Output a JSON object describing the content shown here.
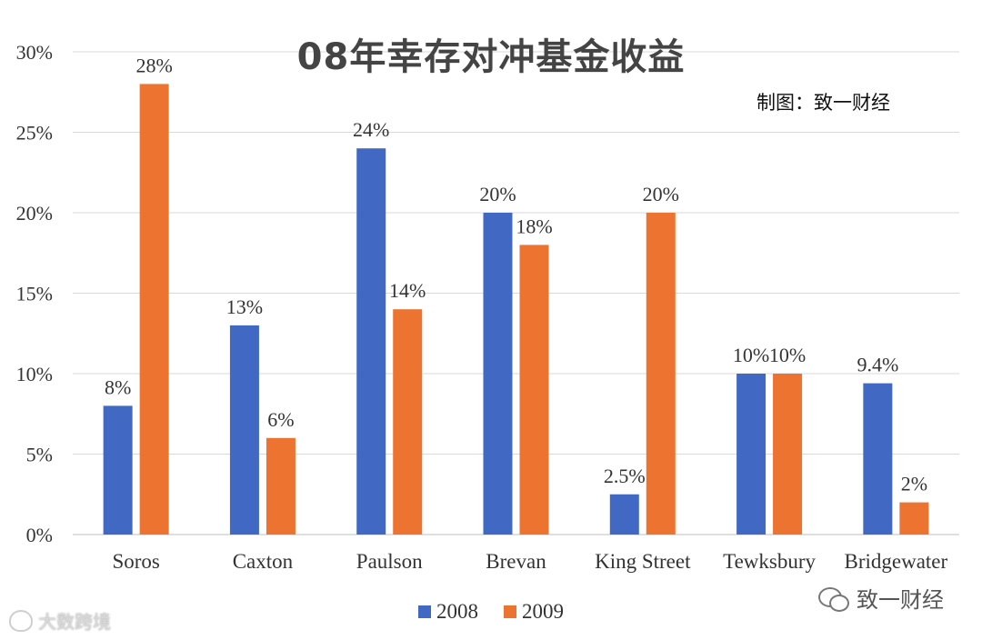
{
  "chart_data": {
    "type": "bar",
    "title": "08年幸存对冲基金收益",
    "credit": "制图：致一财经",
    "categories": [
      "Soros",
      "Caxton",
      "Paulson",
      "Brevan",
      "King Street",
      "Tewksbury",
      "Bridgewater"
    ],
    "series": [
      {
        "name": "2008",
        "color": "#4169c4",
        "values": [
          8,
          13,
          24,
          20,
          2.5,
          10,
          9.4
        ],
        "labels": [
          "8%",
          "13%",
          "24%",
          "20%",
          "2.5%",
          "10%",
          "9.4%"
        ]
      },
      {
        "name": "2009",
        "color": "#ed7330",
        "values": [
          28,
          6,
          14,
          18,
          20,
          10,
          2
        ],
        "labels": [
          "28%",
          "6%",
          "14%",
          "18%",
          "20%",
          "10%",
          "2%"
        ]
      }
    ],
    "yticks": [
      "0%",
      "5%",
      "10%",
      "15%",
      "20%",
      "25%",
      "30%"
    ],
    "ylim": [
      0,
      30
    ],
    "grid": true,
    "legend_position": "bottom"
  },
  "watermark": {
    "left_text": "大数跨境",
    "right_text": "致一财经"
  }
}
